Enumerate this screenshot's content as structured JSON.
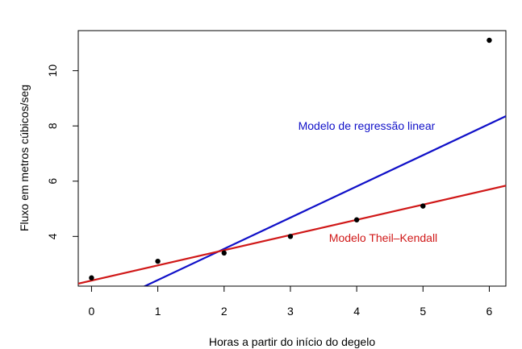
{
  "chart_data": {
    "type": "scatter",
    "title": "",
    "xlabel": "Horas a partir do início do degelo",
    "ylabel": "Fluxo em metros cúbicos/seg",
    "xlim": [
      -0.2,
      6.25
    ],
    "ylim": [
      2.2,
      11.45
    ],
    "x_ticks": [
      0,
      1,
      2,
      3,
      4,
      5,
      6
    ],
    "y_ticks": [
      4,
      6,
      8,
      10
    ],
    "grid": false,
    "points": {
      "x": [
        0,
        1,
        2,
        3,
        4,
        5,
        6
      ],
      "y": [
        2.5,
        3.1,
        3.4,
        4.0,
        4.6,
        5.1,
        11.1
      ],
      "color": "#000000"
    },
    "lines": [
      {
        "label": "Modelo de regressão linear",
        "intercept": 1.29,
        "slope": 1.13,
        "color": "#1010c8"
      },
      {
        "label": "Modelo Theil–Kendall",
        "intercept": 2.4,
        "slope": 0.55,
        "color": "#d01818"
      }
    ]
  }
}
